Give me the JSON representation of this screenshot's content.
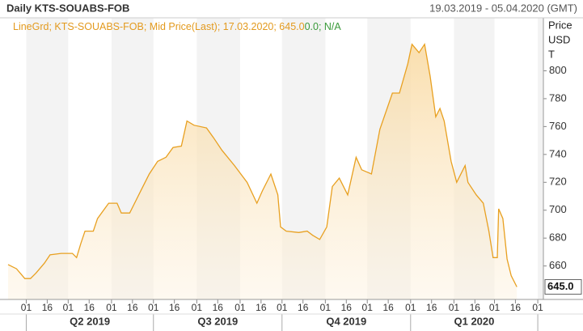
{
  "chart_data": {
    "type": "line",
    "title": "Daily KTS-SOUABS-FOB",
    "date_range": "19.03.2019 - 05.04.2020 (GMT)",
    "legend_text": "LineGrd; KTS-SOUABS-FOB; Mid Price(Last); 17.03.2020; 645.0",
    "legend_change": "0.0; N/A",
    "ylabel": [
      "Price",
      "USD",
      "T"
    ],
    "x": [
      0,
      6,
      12,
      16,
      20,
      26,
      30,
      38,
      46,
      49,
      52,
      55,
      61,
      64,
      72,
      78,
      81,
      87,
      92,
      95,
      101,
      107,
      113,
      118,
      124,
      128,
      133,
      142,
      147,
      153,
      162,
      171,
      178,
      182,
      188,
      193,
      195,
      199,
      208,
      214,
      218,
      223,
      228,
      232,
      237,
      243,
      249,
      253,
      260,
      266,
      275,
      280,
      286,
      289,
      294,
      298,
      302,
      306,
      309,
      312,
      317,
      321,
      327,
      329,
      335,
      340,
      344,
      347,
      350,
      351,
      354,
      357,
      360,
      364
    ],
    "series": [
      {
        "name": "KTS-SOUABS-FOB",
        "color": "#e8a020",
        "values": [
          661,
          658,
          651,
          651,
          655,
          662,
          668,
          669,
          669,
          666,
          676,
          685,
          685,
          694,
          705,
          705,
          698,
          698,
          708,
          714,
          726,
          735,
          738,
          745,
          746,
          764,
          761,
          759,
          752,
          743,
          732,
          720,
          705,
          714,
          726,
          711,
          688,
          685,
          684,
          685,
          682,
          679,
          688,
          717,
          723,
          711,
          738,
          729,
          726,
          758,
          784,
          784,
          805,
          819,
          813,
          819,
          796,
          767,
          773,
          764,
          735,
          720,
          732,
          720,
          711,
          705,
          685,
          666,
          666,
          701,
          694,
          665,
          653,
          645
        ],
        "value_labels": [
          null,
          null,
          null,
          null,
          null,
          null,
          null,
          null,
          null,
          null,
          null,
          null,
          null,
          null,
          null,
          null,
          null,
          null,
          null,
          null,
          null,
          null,
          null,
          null,
          null,
          null,
          null,
          null,
          null,
          null,
          null,
          null,
          null,
          null,
          null,
          null,
          null,
          null,
          null,
          null,
          null,
          null,
          null,
          null,
          null,
          null,
          null,
          null,
          null,
          null,
          null,
          null,
          null,
          null,
          null,
          null,
          null,
          null,
          null,
          null,
          null,
          null,
          null,
          null,
          null,
          null,
          null,
          null,
          null,
          null,
          null,
          null,
          null,
          "645.0"
        ]
      }
    ],
    "xlim": [
      0,
      383
    ],
    "ylim": [
      636,
      838
    ],
    "yticks": [
      660,
      680,
      700,
      720,
      740,
      760,
      780,
      800
    ],
    "xticks": [
      {
        "value": 13,
        "label": "01"
      },
      {
        "value": 28,
        "label": "16"
      },
      {
        "value": 43,
        "label": "01"
      },
      {
        "value": 58,
        "label": "16"
      },
      {
        "value": 74,
        "label": "01"
      },
      {
        "value": 89,
        "label": "16"
      },
      {
        "value": 104,
        "label": "01"
      },
      {
        "value": 119,
        "label": "16"
      },
      {
        "value": 135,
        "label": "01"
      },
      {
        "value": 150,
        "label": "16"
      },
      {
        "value": 166,
        "label": "01"
      },
      {
        "value": 181,
        "label": "16"
      },
      {
        "value": 196,
        "label": "01"
      },
      {
        "value": 211,
        "label": "16"
      },
      {
        "value": 227,
        "label": "01"
      },
      {
        "value": 242,
        "label": "16"
      },
      {
        "value": 257,
        "label": "01"
      },
      {
        "value": 272,
        "label": "16"
      },
      {
        "value": 288,
        "label": "01"
      },
      {
        "value": 303,
        "label": "16"
      },
      {
        "value": 319,
        "label": "01"
      },
      {
        "value": 334,
        "label": "16"
      },
      {
        "value": 348,
        "label": "01"
      },
      {
        "value": 363,
        "label": "16"
      },
      {
        "value": 379,
        "label": "01"
      }
    ],
    "quarters": [
      "Q2 2019",
      "Q3 2019",
      "Q4 2019",
      "Q1 2020"
    ],
    "month_stripes": true
  }
}
